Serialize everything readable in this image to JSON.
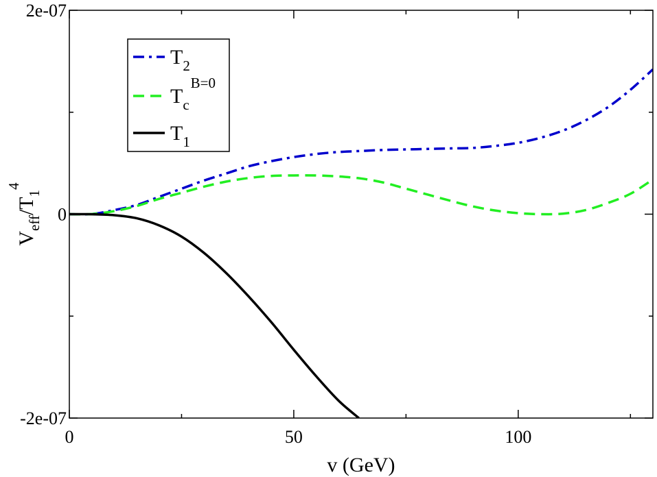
{
  "chart_data": {
    "type": "line",
    "xlabel": "v (GeV)",
    "ylabel": {
      "main": "V",
      "sub": "eff",
      "slash": "/T",
      "sub2": "1",
      "sup": "4"
    },
    "xlim": [
      0,
      130
    ],
    "ylim": [
      -2e-07,
      2e-07
    ],
    "x_ticks": [
      0,
      50,
      100
    ],
    "x_tick_labels": [
      "0",
      "50",
      "100"
    ],
    "x_minor_ticks": [
      25,
      75,
      125
    ],
    "y_ticks": [
      -2e-07,
      0,
      2e-07
    ],
    "y_tick_labels": [
      "-2e-07",
      "0",
      "2e-07"
    ],
    "y_minor_ticks": [
      -1e-07,
      1e-07
    ],
    "legend_position": "top-left",
    "series": [
      {
        "name": "T2",
        "label_main": "T",
        "label_sub": "2",
        "label_sup": "",
        "color": "#0000cc",
        "style": "dashdot",
        "x": [
          0,
          5,
          10,
          15,
          20,
          25,
          30,
          35,
          40,
          45,
          50,
          55,
          60,
          65,
          70,
          75,
          80,
          85,
          90,
          95,
          100,
          105,
          110,
          115,
          120,
          125,
          130
        ],
        "y": [
          0,
          1e-10,
          4e-09,
          9e-09,
          1.7e-08,
          2.5e-08,
          3.3e-08,
          4e-08,
          4.7e-08,
          5.2e-08,
          5.6e-08,
          5.9e-08,
          6.1e-08,
          6.2e-08,
          6.3e-08,
          6.35e-08,
          6.4e-08,
          6.45e-08,
          6.5e-08,
          6.7e-08,
          7e-08,
          7.5e-08,
          8.2e-08,
          9.2e-08,
          1.05e-07,
          1.22e-07,
          1.42e-07
        ]
      },
      {
        "name": "Tc B=0",
        "label_main": "T",
        "label_sub": "c",
        "label_sup": "B=0",
        "color": "#22ee22",
        "style": "dashed",
        "x": [
          0,
          5,
          10,
          15,
          20,
          25,
          30,
          35,
          40,
          45,
          50,
          55,
          60,
          65,
          70,
          75,
          80,
          85,
          90,
          95,
          100,
          105,
          110,
          115,
          120,
          125,
          130
        ],
        "y": [
          0,
          1e-10,
          3e-09,
          8e-09,
          1.5e-08,
          2.1e-08,
          2.7e-08,
          3.2e-08,
          3.55e-08,
          3.75e-08,
          3.8e-08,
          3.8e-08,
          3.7e-08,
          3.5e-08,
          3.1e-08,
          2.5e-08,
          1.9e-08,
          1.3e-08,
          7.5e-09,
          3.5e-09,
          1e-09,
          0.0,
          5e-10,
          4e-09,
          1.1e-08,
          2e-08,
          3.4e-08
        ]
      },
      {
        "name": "T1",
        "label_main": "T",
        "label_sub": "1",
        "label_sup": "",
        "color": "#000000",
        "style": "solid",
        "x": [
          0,
          5,
          10,
          15,
          20,
          25,
          30,
          35,
          40,
          45,
          50,
          55,
          60,
          64.5
        ],
        "y": [
          0,
          -1e-10,
          -1e-09,
          -4e-09,
          -1.1e-08,
          -2.2e-08,
          -3.8e-08,
          -5.8e-08,
          -8.1e-08,
          -1.06e-07,
          -1.33e-07,
          -1.59e-07,
          -1.83e-07,
          -2e-07
        ]
      }
    ]
  }
}
